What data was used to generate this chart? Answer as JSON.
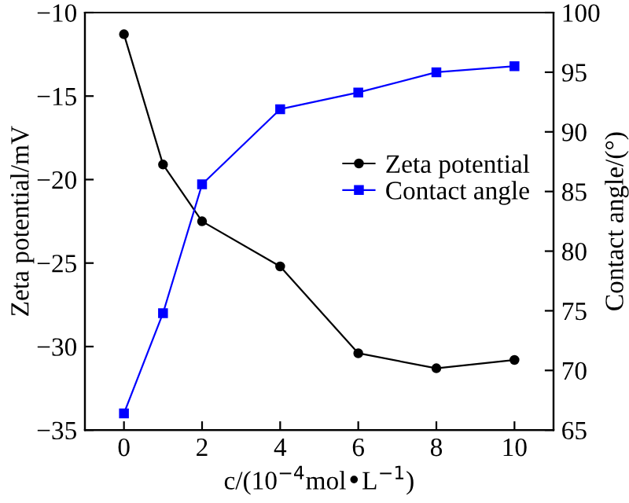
{
  "chart_data": {
    "type": "line",
    "xlabel": "c/(10$^{−4}$mol•L$^{−1}$)",
    "ylabel": "Zeta potential/mV",
    "y2label": "Contact angle/(°)",
    "x": [
      0,
      1,
      2,
      4,
      6,
      8,
      10
    ],
    "series": [
      {
        "name": "Zeta potential",
        "color": "#000000",
        "marker": "circle",
        "values": [
          -11.3,
          -19.1,
          -22.5,
          -25.2,
          -30.4,
          -31.3,
          -30.8
        ]
      },
      {
        "name": "Contact angle",
        "color": "#0000ff",
        "marker": "square",
        "axis": "y2",
        "values": [
          66.4,
          74.8,
          85.6,
          91.9,
          93.3,
          95.0,
          95.5
        ]
      }
    ],
    "xlim": [
      -1,
      11
    ],
    "xticks": [
      0,
      2,
      4,
      6,
      8,
      10
    ],
    "ylim": [
      -35,
      -10
    ],
    "yticks": [
      -35,
      -30,
      -25,
      -20,
      -15,
      -10
    ],
    "y2lim": [
      65,
      100
    ],
    "y2ticks": [
      65,
      70,
      75,
      80,
      85,
      90,
      95,
      100
    ],
    "legend": "right",
    "grid": false,
    "line_style": "solid"
  }
}
